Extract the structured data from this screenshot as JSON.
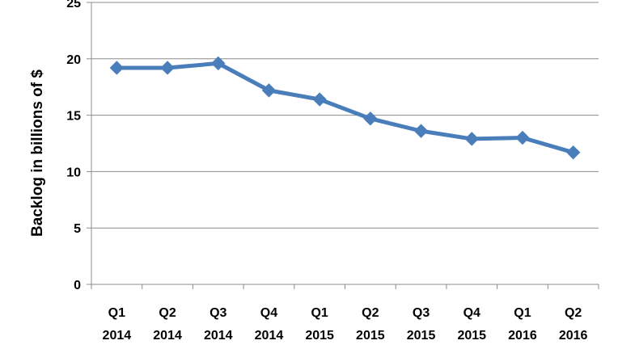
{
  "chart_data": {
    "type": "line",
    "title": "",
    "xlabel": "",
    "ylabel": "Backlog in billions of $",
    "categories": [
      [
        "Q1",
        "2014"
      ],
      [
        "Q2",
        "2014"
      ],
      [
        "Q3",
        "2014"
      ],
      [
        "Q4",
        "2014"
      ],
      [
        "Q1",
        "2015"
      ],
      [
        "Q2",
        "2015"
      ],
      [
        "Q3",
        "2015"
      ],
      [
        "Q4",
        "2015"
      ],
      [
        "Q1",
        "2016"
      ],
      [
        "Q2",
        "2016"
      ]
    ],
    "series": [
      {
        "values": [
          19.2,
          19.2,
          19.6,
          17.2,
          16.4,
          14.7,
          13.6,
          12.9,
          13.0,
          11.7
        ],
        "color": "#4a7ebb",
        "marker": "diamond"
      }
    ],
    "ylim": [
      0,
      25
    ],
    "yticks": [
      0,
      5,
      10,
      15,
      20,
      25
    ],
    "grid": "horizontal",
    "legend": "none"
  }
}
